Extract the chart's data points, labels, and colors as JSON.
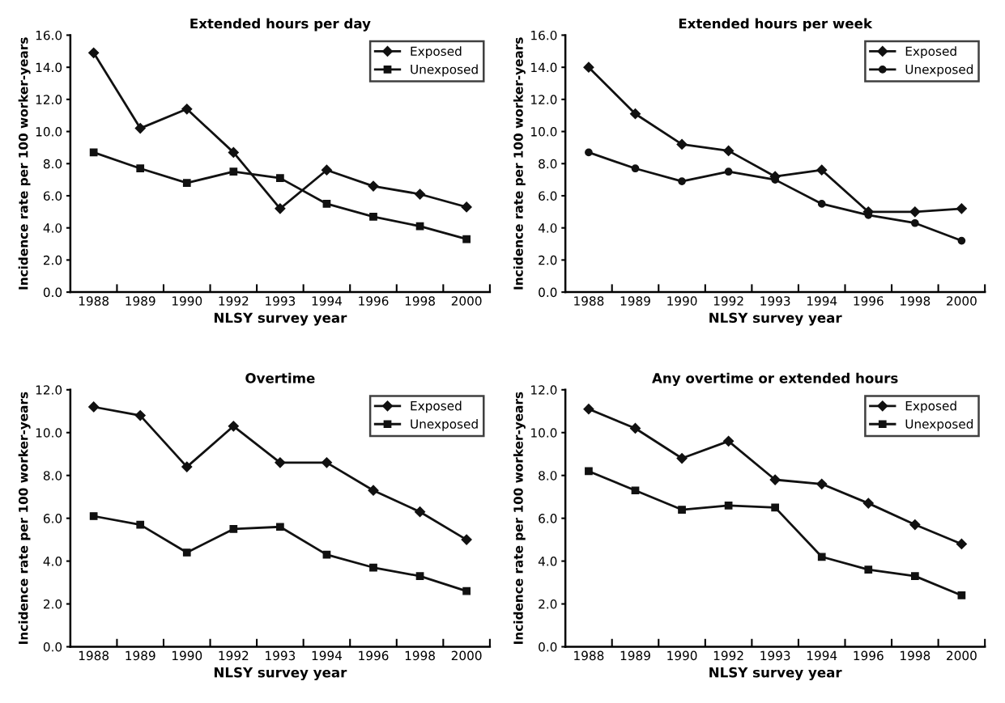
{
  "chart_data": [
    {
      "type": "line",
      "title": "Extended hours per day",
      "xlabel": "NLSY survey year",
      "ylabel": "Incidence rate per 100 worker-years",
      "categories": [
        "1988",
        "1989",
        "1990",
        "1992",
        "1993",
        "1994",
        "1996",
        "1998",
        "2000"
      ],
      "ylim": [
        0,
        16
      ],
      "yticks": [
        {
          "value": 0,
          "label": "0.0"
        },
        {
          "value": 2,
          "label": "2.0"
        },
        {
          "value": 4,
          "label": "4.0"
        },
        {
          "value": 6,
          "label": "6.0"
        },
        {
          "value": 8,
          "label": "8.0"
        },
        {
          "value": 10,
          "label": "10.0"
        },
        {
          "value": 12,
          "label": "12.0"
        },
        {
          "value": 14,
          "label": "14.0"
        },
        {
          "value": 16,
          "label": "16.0"
        }
      ],
      "legend": "top right",
      "grid": false,
      "series": [
        {
          "name": "Exposed",
          "color": "#111111",
          "marker": "diamond",
          "values": [
            14.9,
            10.2,
            11.4,
            8.7,
            5.2,
            7.6,
            6.6,
            6.1,
            5.3
          ]
        },
        {
          "name": "Unexposed",
          "color": "#111111",
          "marker": "square",
          "values": [
            8.7,
            7.7,
            6.8,
            7.5,
            7.1,
            5.5,
            4.7,
            4.1,
            3.3
          ]
        }
      ]
    },
    {
      "type": "line",
      "title": "Extended hours per week",
      "xlabel": "NLSY survey year",
      "ylabel": "Incidence rate per 100 worker-years",
      "categories": [
        "1988",
        "1989",
        "1990",
        "1992",
        "1993",
        "1994",
        "1996",
        "1998",
        "2000"
      ],
      "ylim": [
        0,
        16
      ],
      "yticks": [
        {
          "value": 0,
          "label": "0.0"
        },
        {
          "value": 2,
          "label": "2.0"
        },
        {
          "value": 4,
          "label": "4.0"
        },
        {
          "value": 6,
          "label": "6.0"
        },
        {
          "value": 8,
          "label": "8.0"
        },
        {
          "value": 10,
          "label": "10.0"
        },
        {
          "value": 12,
          "label": "12.0"
        },
        {
          "value": 14,
          "label": "14.0"
        },
        {
          "value": 16,
          "label": "16.0"
        }
      ],
      "legend": "top right",
      "grid": false,
      "series": [
        {
          "name": "Exposed",
          "color": "#111111",
          "marker": "diamond",
          "values": [
            14.0,
            11.1,
            9.2,
            8.8,
            7.2,
            7.6,
            5.0,
            5.0,
            5.2
          ]
        },
        {
          "name": "Unexposed",
          "color": "#111111",
          "marker": "circle",
          "values": [
            8.7,
            7.7,
            6.9,
            7.5,
            7.0,
            5.5,
            4.8,
            4.3,
            3.2
          ]
        }
      ]
    },
    {
      "type": "line",
      "title": "Overtime",
      "xlabel": "NLSY survey year",
      "ylabel": "Incidence rate per 100 worker-years",
      "categories": [
        "1988",
        "1989",
        "1990",
        "1992",
        "1993",
        "1994",
        "1996",
        "1998",
        "2000"
      ],
      "ylim": [
        0,
        12
      ],
      "yticks": [
        {
          "value": 0,
          "label": "0.0"
        },
        {
          "value": 2,
          "label": "2.0"
        },
        {
          "value": 4,
          "label": "4.0"
        },
        {
          "value": 6,
          "label": "6.0"
        },
        {
          "value": 8,
          "label": "8.0"
        },
        {
          "value": 10,
          "label": "10.0"
        },
        {
          "value": 12,
          "label": "12.0"
        }
      ],
      "legend": "top right",
      "grid": false,
      "series": [
        {
          "name": "Exposed",
          "color": "#111111",
          "marker": "diamond",
          "values": [
            11.2,
            10.8,
            8.4,
            10.3,
            8.6,
            8.6,
            7.3,
            6.3,
            5.0
          ]
        },
        {
          "name": "Unexposed",
          "color": "#111111",
          "marker": "square",
          "values": [
            6.1,
            5.7,
            4.4,
            5.5,
            5.6,
            4.3,
            3.7,
            3.3,
            2.6
          ]
        }
      ]
    },
    {
      "type": "line",
      "title": "Any overtime or extended hours",
      "xlabel": "NLSY survey year",
      "ylabel": "Incidence rate per 100 worker-years",
      "categories": [
        "1988",
        "1989",
        "1990",
        "1992",
        "1993",
        "1994",
        "1996",
        "1998",
        "2000"
      ],
      "ylim": [
        0,
        12
      ],
      "yticks": [
        {
          "value": 0,
          "label": "0.0"
        },
        {
          "value": 2,
          "label": "2.0"
        },
        {
          "value": 4,
          "label": "4.0"
        },
        {
          "value": 6,
          "label": "6.0"
        },
        {
          "value": 8,
          "label": "8.0"
        },
        {
          "value": 10,
          "label": "10.0"
        },
        {
          "value": 12,
          "label": "12.0"
        }
      ],
      "legend": "top right",
      "grid": false,
      "series": [
        {
          "name": "Exposed",
          "color": "#111111",
          "marker": "diamond",
          "values": [
            11.1,
            10.2,
            8.8,
            9.6,
            7.8,
            7.6,
            6.7,
            5.7,
            4.8
          ]
        },
        {
          "name": "Unexposed",
          "color": "#111111",
          "marker": "square",
          "values": [
            8.2,
            7.3,
            6.4,
            6.6,
            6.5,
            4.2,
            3.6,
            3.3,
            2.4
          ]
        }
      ]
    }
  ]
}
